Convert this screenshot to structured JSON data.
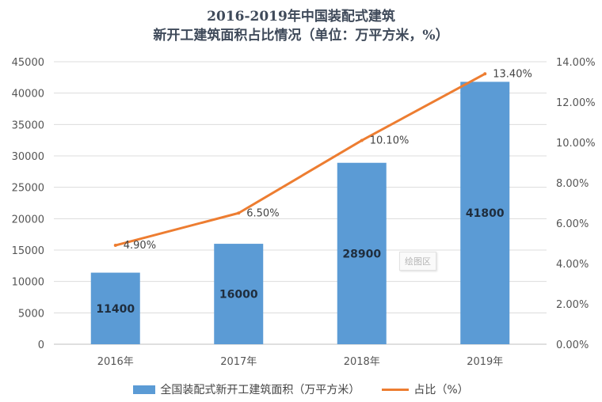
{
  "title_line1": "2016-2019年中国装配式建筑",
  "title_line2": "新开工建筑面积占比情况（单位：万平方米，%）",
  "watermark": "绘图区",
  "colors": {
    "bar": "#5b9bd5",
    "line": "#ed7d31"
  },
  "chart_data": {
    "type": "bar",
    "title": "2016-2019年中国装配式建筑新开工建筑面积占比情况（单位：万平方米，%）",
    "categories": [
      "2016年",
      "2017年",
      "2018年",
      "2019年"
    ],
    "series": [
      {
        "name": "全国装配式新开工建筑面积（万平方米）",
        "type": "bar",
        "axis": "left",
        "values": [
          11400,
          16000,
          28900,
          41800
        ],
        "labels": [
          "11400",
          "16000",
          "28900",
          "41800"
        ]
      },
      {
        "name": "占比（%）",
        "type": "line",
        "axis": "right",
        "values": [
          4.9,
          6.5,
          10.1,
          13.4
        ],
        "labels": [
          "4.90%",
          "6.50%",
          "10.10%",
          "13.40%"
        ]
      }
    ],
    "ylim_left": [
      0,
      45000
    ],
    "yticks_left": [
      "0",
      "5000",
      "10000",
      "15000",
      "20000",
      "25000",
      "30000",
      "35000",
      "40000",
      "45000"
    ],
    "ylim_right": [
      0,
      14
    ],
    "yticks_right": [
      "0.00%",
      "2.00%",
      "4.00%",
      "6.00%",
      "8.00%",
      "10.00%",
      "12.00%",
      "14.00%"
    ],
    "grid": true,
    "legend": "bottom"
  }
}
